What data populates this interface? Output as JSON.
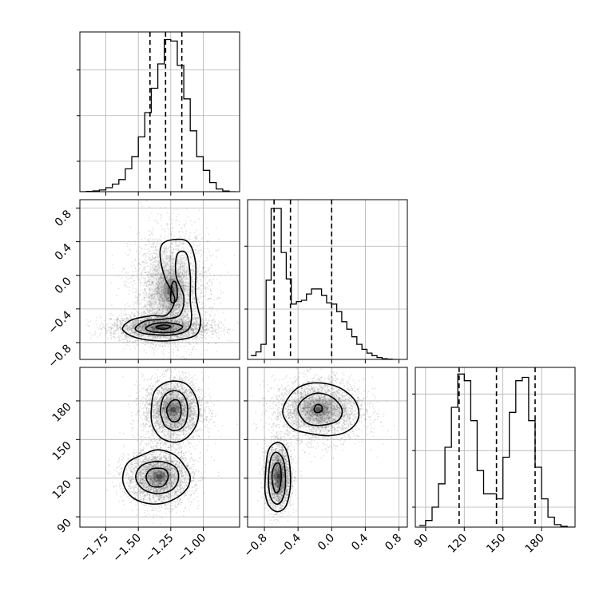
{
  "chart_data": {
    "type": "corner",
    "grid": true,
    "colors": {
      "line": "#000000",
      "grid": "#b0b0b0",
      "points": "#555555",
      "density": "#000000"
    },
    "parameters": [
      {
        "name": "",
        "range": [
          -1.95,
          -0.72
        ],
        "ticks": [
          -1.75,
          -1.5,
          -1.25,
          -1.0
        ],
        "tick_labels": [
          "−1.75",
          "−1.50",
          "−1.25",
          "−1.00"
        ]
      },
      {
        "name": "",
        "range": [
          -1.0,
          0.9
        ],
        "ticks": [
          -0.8,
          -0.4,
          0.0,
          0.4,
          0.8
        ],
        "tick_labels": [
          "−0.8",
          "−0.4",
          "0.0",
          "0.4",
          "0.8"
        ]
      },
      {
        "name": "",
        "range": [
          82,
          206
        ],
        "ticks": [
          90,
          120,
          150,
          180
        ],
        "tick_labels": [
          "90",
          "120",
          "150",
          "180"
        ]
      }
    ],
    "marginals": [
      {
        "param": 0,
        "bin_edges": [
          -1.95,
          -1.9,
          -1.85,
          -1.8,
          -1.75,
          -1.7,
          -1.65,
          -1.6,
          -1.55,
          -1.5,
          -1.45,
          -1.4,
          -1.35,
          -1.3,
          -1.25,
          -1.2,
          -1.15,
          -1.1,
          -1.05,
          -1.0,
          -0.95,
          -0.9,
          -0.85,
          -0.8,
          -0.75
        ],
        "counts": [
          0,
          2,
          5,
          11,
          26,
          50,
          80,
          150,
          230,
          360,
          520,
          680,
          840,
          1000,
          990,
          830,
          610,
          400,
          230,
          140,
          60,
          18,
          4,
          0
        ],
        "ylim": [
          0,
          1050
        ],
        "grid_values": [
          200,
          500,
          800
        ],
        "quantiles": [
          -1.41,
          -1.29,
          -1.165
        ]
      },
      {
        "param": 1,
        "bin_edges": [
          -0.96,
          -0.9,
          -0.84,
          -0.78,
          -0.72,
          -0.66,
          -0.6,
          -0.54,
          -0.48,
          -0.42,
          -0.36,
          -0.3,
          -0.24,
          -0.18,
          -0.12,
          -0.06,
          0.0,
          0.06,
          0.12,
          0.18,
          0.24,
          0.3,
          0.36,
          0.42,
          0.48,
          0.54,
          0.6,
          0.66,
          0.72,
          0.78
        ],
        "counts": [
          30,
          60,
          120,
          630,
          1200,
          1200,
          850,
          640,
          440,
          460,
          470,
          520,
          560,
          560,
          510,
          450,
          440,
          380,
          300,
          240,
          180,
          120,
          80,
          50,
          30,
          15,
          5,
          2,
          0
        ],
        "ylim": [
          0,
          1270
        ],
        "grid_values": [
          400,
          900
        ],
        "quantiles": [
          -0.685,
          -0.49,
          0.0
        ]
      },
      {
        "param": 2,
        "bin_edges": [
          85,
          90,
          95,
          100,
          105,
          110,
          115,
          120,
          125,
          130,
          135,
          140,
          145,
          150,
          155,
          160,
          165,
          170,
          175,
          180,
          185,
          190,
          195,
          200,
          205
        ],
        "counts": [
          10,
          40,
          120,
          260,
          480,
          720,
          920,
          880,
          640,
          340,
          200,
          200,
          170,
          420,
          690,
          880,
          900,
          640,
          360,
          170,
          60,
          15,
          5,
          0
        ],
        "ylim": [
          0,
          960
        ],
        "grid_values": [
          120,
          460,
          800
        ],
        "quantiles": [
          116,
          145,
          175
        ]
      }
    ],
    "pairs": [
      {
        "x_param": 0,
        "y_param": 1,
        "clusters": [
          {
            "center": [
              -1.33,
              -0.62
            ],
            "sigma": [
              0.14,
              0.055
            ],
            "n": 3000
          },
          {
            "center": [
              -1.25,
              -0.18
            ],
            "sigma": [
              0.11,
              0.26
            ],
            "n": 2800
          }
        ],
        "contours": [
          [
            [
              -1.62,
              -0.62
            ],
            [
              -1.55,
              -0.53
            ],
            [
              -1.4,
              -0.48
            ],
            [
              -1.28,
              -0.47
            ],
            [
              -1.22,
              -0.28
            ],
            [
              -1.29,
              -0.05
            ],
            [
              -1.33,
              0.2
            ],
            [
              -1.32,
              0.36
            ],
            [
              -1.25,
              0.42
            ],
            [
              -1.12,
              0.4
            ],
            [
              -1.06,
              0.16
            ],
            [
              -1.06,
              -0.2
            ],
            [
              -1.04,
              -0.4
            ],
            [
              -1.02,
              -0.55
            ],
            [
              -1.05,
              -0.7
            ],
            [
              -1.16,
              -0.76
            ],
            [
              -1.35,
              -0.78
            ],
            [
              -1.52,
              -0.74
            ],
            [
              -1.6,
              -0.68
            ]
          ],
          [
            [
              -1.52,
              -0.62
            ],
            [
              -1.44,
              -0.54
            ],
            [
              -1.3,
              -0.52
            ],
            [
              -1.18,
              -0.47
            ],
            [
              -1.15,
              -0.25
            ],
            [
              -1.21,
              0.0
            ],
            [
              -1.2,
              0.25
            ],
            [
              -1.13,
              0.26
            ],
            [
              -1.1,
              0.0
            ],
            [
              -1.1,
              -0.3
            ],
            [
              -1.09,
              -0.5
            ],
            [
              -1.12,
              -0.65
            ],
            [
              -1.25,
              -0.71
            ],
            [
              -1.42,
              -0.7
            ],
            [
              -1.5,
              -0.67
            ]
          ],
          [
            [
              -1.44,
              -0.62
            ],
            [
              -1.36,
              -0.57
            ],
            [
              -1.24,
              -0.57
            ],
            [
              -1.16,
              -0.61
            ],
            [
              -1.22,
              -0.67
            ],
            [
              -1.34,
              -0.68
            ],
            [
              -1.42,
              -0.66
            ]
          ],
          [
            [
              -1.25,
              -0.3
            ],
            [
              -1.24,
              -0.1
            ],
            [
              -1.21,
              -0.09
            ],
            [
              -1.2,
              -0.25
            ],
            [
              -1.22,
              -0.32
            ]
          ],
          [
            [
              -1.36,
              -0.61
            ],
            [
              -1.3,
              -0.59
            ],
            [
              -1.25,
              -0.61
            ],
            [
              -1.3,
              -0.64
            ],
            [
              -1.35,
              -0.63
            ]
          ]
        ]
      },
      {
        "x_param": 0,
        "y_param": 2,
        "clusters": [
          {
            "center": [
              -1.23,
              173
            ],
            "sigma": [
              0.085,
              9
            ],
            "n": 3000
          },
          {
            "center": [
              -1.34,
              121
            ],
            "sigma": [
              0.095,
              8
            ],
            "n": 3000
          }
        ],
        "contours": [
          [
            [
              -1.4,
              173
            ],
            [
              -1.37,
              188
            ],
            [
              -1.26,
              195
            ],
            [
              -1.13,
              193
            ],
            [
              -1.05,
              181
            ],
            [
              -1.04,
              166
            ],
            [
              -1.1,
              154
            ],
            [
              -1.2,
              148
            ],
            [
              -1.32,
              151
            ],
            [
              -1.39,
              161
            ]
          ],
          [
            [
              -1.33,
              173
            ],
            [
              -1.3,
              184
            ],
            [
              -1.22,
              188
            ],
            [
              -1.15,
              184
            ],
            [
              -1.12,
              174
            ],
            [
              -1.14,
              162
            ],
            [
              -1.21,
              157
            ],
            [
              -1.29,
              160
            ],
            [
              -1.32,
              167
            ]
          ],
          [
            [
              -1.28,
              174
            ],
            [
              -1.24,
              180
            ],
            [
              -1.19,
              180
            ],
            [
              -1.17,
              172
            ],
            [
              -1.19,
              165
            ],
            [
              -1.24,
              164
            ],
            [
              -1.27,
              168
            ]
          ],
          [
            [
              -1.62,
              121
            ],
            [
              -1.58,
              132
            ],
            [
              -1.47,
              138
            ],
            [
              -1.35,
              142
            ],
            [
              -1.22,
              138
            ],
            [
              -1.14,
              129
            ],
            [
              -1.1,
              120
            ],
            [
              -1.14,
              110
            ],
            [
              -1.26,
              102
            ],
            [
              -1.4,
              100
            ],
            [
              -1.53,
              104
            ],
            [
              -1.6,
              112
            ]
          ],
          [
            [
              -1.52,
              121
            ],
            [
              -1.47,
              130
            ],
            [
              -1.34,
              133
            ],
            [
              -1.22,
              129
            ],
            [
              -1.19,
              120
            ],
            [
              -1.24,
              111
            ],
            [
              -1.36,
              108
            ],
            [
              -1.47,
              112
            ]
          ],
          [
            [
              -1.44,
              121
            ],
            [
              -1.4,
              127
            ],
            [
              -1.3,
              127
            ],
            [
              -1.27,
              121
            ],
            [
              -1.31,
              114
            ],
            [
              -1.4,
              114
            ]
          ]
        ]
      },
      {
        "x_param": 1,
        "y_param": 2,
        "clusters": [
          {
            "center": [
              -0.15,
              173
            ],
            "sigma": [
              0.2,
              9
            ],
            "n": 3000
          },
          {
            "center": [
              -0.63,
              121
            ],
            "sigma": [
              0.055,
              9
            ],
            "n": 3000
          }
        ],
        "contours": [
          [
            [
              -0.58,
              170
            ],
            [
              -0.53,
              181
            ],
            [
              -0.38,
              191
            ],
            [
              -0.15,
              194
            ],
            [
              0.1,
              190
            ],
            [
              0.28,
              180
            ],
            [
              0.32,
              167
            ],
            [
              0.2,
              157
            ],
            [
              -0.02,
              153
            ],
            [
              -0.28,
              155
            ],
            [
              -0.47,
              159
            ]
          ],
          [
            [
              -0.4,
              173
            ],
            [
              -0.34,
              181
            ],
            [
              -0.18,
              186
            ],
            [
              0.0,
              183
            ],
            [
              0.12,
              174
            ],
            [
              0.08,
              165
            ],
            [
              -0.12,
              161
            ],
            [
              -0.3,
              163
            ]
          ],
          [
            [
              -0.21,
              173
            ],
            [
              -0.18,
              177
            ],
            [
              -0.12,
              176
            ],
            [
              -0.12,
              172
            ],
            [
              -0.18,
              171
            ]
          ],
          [
            [
              -0.79,
              120
            ],
            [
              -0.76,
              140
            ],
            [
              -0.68,
              147
            ],
            [
              -0.58,
              146
            ],
            [
              -0.51,
              135
            ],
            [
              -0.49,
              115
            ],
            [
              -0.54,
              99
            ],
            [
              -0.64,
              94
            ],
            [
              -0.74,
              98
            ],
            [
              -0.79,
              108
            ]
          ],
          [
            [
              -0.75,
              121
            ],
            [
              -0.72,
              136
            ],
            [
              -0.65,
              140
            ],
            [
              -0.57,
              133
            ],
            [
              -0.55,
              115
            ],
            [
              -0.59,
              103
            ],
            [
              -0.66,
              100
            ],
            [
              -0.73,
              106
            ]
          ],
          [
            [
              -0.71,
              121
            ],
            [
              -0.68,
              130
            ],
            [
              -0.62,
              131
            ],
            [
              -0.6,
              120
            ],
            [
              -0.63,
              110
            ],
            [
              -0.68,
              110
            ]
          ]
        ]
      }
    ]
  }
}
